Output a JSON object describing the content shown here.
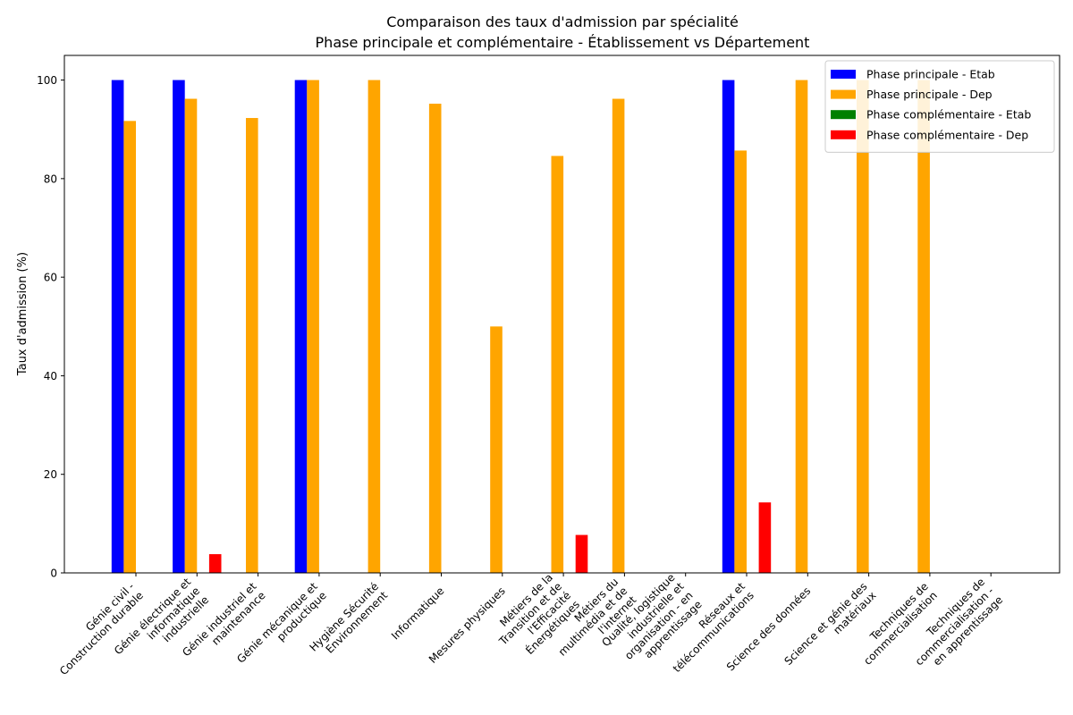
{
  "chart_data": {
    "type": "bar",
    "title_lines": [
      "Comparaison des taux d'admission par spécialité",
      "Phase principale et complémentaire - Établissement vs Département"
    ],
    "ylabel": "Taux d'admission (%)",
    "ylim": [
      0,
      105
    ],
    "yticks": [
      0,
      20,
      40,
      60,
      80,
      100
    ],
    "legend_position": "top-right",
    "grid": false,
    "categories": [
      [
        "Génie civil -",
        "Construction durable"
      ],
      [
        "Génie électrique et",
        "informatique",
        "industrielle"
      ],
      [
        "Génie industriel et",
        "maintenance"
      ],
      [
        "Génie mécanique et",
        "productique"
      ],
      [
        "Hygiène Sécurité",
        "Environnement"
      ],
      [
        "Informatique"
      ],
      [
        "Mesures physiques"
      ],
      [
        "Métiers de la",
        "Transition et de",
        "l'Efficacité",
        "Énergétiques"
      ],
      [
        "Métiers du",
        "multimédia et de",
        "l'internet"
      ],
      [
        "Qualité, logistique",
        "industrielle et",
        "organisation - en",
        "apprentissage"
      ],
      [
        "Réseaux et",
        "télécommunications"
      ],
      [
        "Science des données"
      ],
      [
        "Science et génie des",
        "matériaux"
      ],
      [
        "Techniques de",
        "commercialisation"
      ],
      [
        "Techniques de",
        "commercialisation -",
        "en apprentissage"
      ]
    ],
    "series": [
      {
        "name": "Phase principale - Etab",
        "color": "#0000ff",
        "values": [
          100,
          100,
          0,
          100,
          0,
          0,
          0,
          0,
          0,
          0,
          100,
          0,
          0,
          0,
          0
        ]
      },
      {
        "name": "Phase principale - Dep",
        "color": "#ffa500",
        "values": [
          91.7,
          96.2,
          92.3,
          100,
          100,
          95.2,
          50,
          84.6,
          96.2,
          0,
          85.7,
          100,
          100,
          100,
          0
        ]
      },
      {
        "name": "Phase complémentaire - Etab",
        "color": "#008000",
        "values": [
          0,
          0,
          0,
          0,
          0,
          0,
          0,
          0,
          0,
          0,
          0,
          0,
          0,
          0,
          0
        ]
      },
      {
        "name": "Phase complémentaire - Dep",
        "color": "#ff0000",
        "values": [
          0,
          3.8,
          0,
          0,
          0,
          0,
          0,
          7.7,
          0,
          0,
          14.3,
          0,
          0,
          0,
          0
        ]
      }
    ]
  }
}
